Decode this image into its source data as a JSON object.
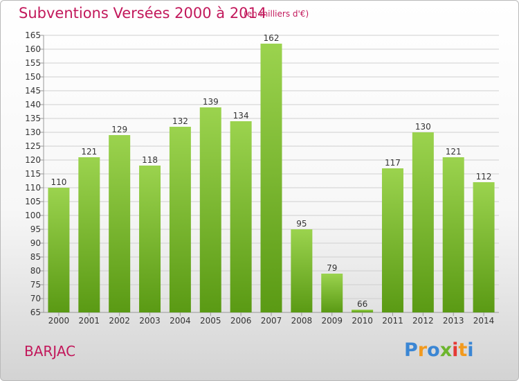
{
  "header": {
    "title": "Subventions Versées 2000 à 2014",
    "unit_note": "(en milliers d'€)"
  },
  "footer": {
    "commune": "BARJAC",
    "brand": "Proxiti"
  },
  "colors": {
    "accent": "#c2185b",
    "bar_light": "#9bd34e",
    "bar_dark": "#5a9a14",
    "grid": "#cfcfcf"
  },
  "chart_data": {
    "type": "bar",
    "title": "Subventions Versées 2000 à 2014",
    "subtitle": "(en milliers d'€)",
    "categories": [
      "2000",
      "2001",
      "2002",
      "2003",
      "2004",
      "2005",
      "2006",
      "2007",
      "2008",
      "2009",
      "2010",
      "2011",
      "2012",
      "2013",
      "2014"
    ],
    "values": [
      110,
      121,
      129,
      118,
      132,
      139,
      134,
      162,
      95,
      79,
      66,
      117,
      130,
      121,
      112
    ],
    "ylim": [
      65,
      165
    ],
    "ytick_step": 5,
    "grid": true,
    "data_labels": true
  }
}
